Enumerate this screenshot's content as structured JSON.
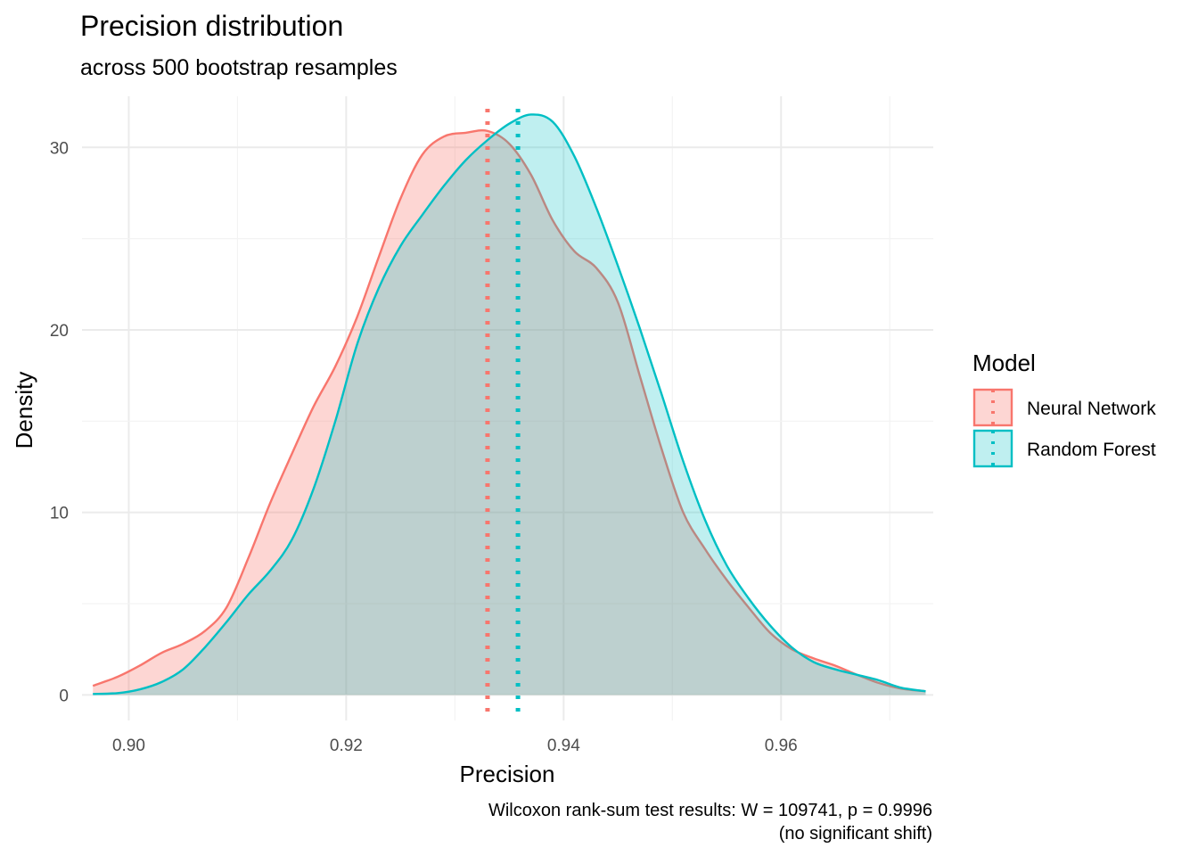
{
  "chart_data": {
    "type": "area",
    "title": "Precision distribution",
    "subtitle": "across 500 bootstrap resamples",
    "xlabel": "Precision",
    "ylabel": "Density",
    "caption_line1": "Wilcoxon rank-sum test results: W = 109741, p = 0.9996",
    "caption_line2": "(no significant shift)",
    "xlim": [
      0.8957,
      0.974
    ],
    "ylim": [
      -1.4,
      32.8
    ],
    "x_ticks": [
      0.9,
      0.92,
      0.94,
      0.96
    ],
    "x_tick_labels": [
      "0.90",
      "0.92",
      "0.94",
      "0.96"
    ],
    "y_ticks": [
      0,
      10,
      20,
      30
    ],
    "y_tick_labels": [
      "0",
      "10",
      "20",
      "30"
    ],
    "grid": true,
    "legend": {
      "title": "Model",
      "position": "right"
    },
    "series": [
      {
        "name": "Neural Network",
        "color": "#F8766D",
        "fill": "#F8766D",
        "fill_opacity": 0.3,
        "mean": 0.933,
        "points": [
          [
            0.8967,
            0.5
          ],
          [
            0.899,
            1.0
          ],
          [
            0.901,
            1.6
          ],
          [
            0.903,
            2.3
          ],
          [
            0.905,
            2.8
          ],
          [
            0.907,
            3.5
          ],
          [
            0.909,
            4.8
          ],
          [
            0.911,
            7.5
          ],
          [
            0.913,
            10.5
          ],
          [
            0.915,
            13.2
          ],
          [
            0.917,
            15.8
          ],
          [
            0.919,
            18.0
          ],
          [
            0.921,
            20.7
          ],
          [
            0.923,
            24.0
          ],
          [
            0.925,
            27.2
          ],
          [
            0.927,
            29.6
          ],
          [
            0.929,
            30.6
          ],
          [
            0.931,
            30.8
          ],
          [
            0.933,
            30.9
          ],
          [
            0.935,
            30.2
          ],
          [
            0.937,
            28.5
          ],
          [
            0.939,
            26.0
          ],
          [
            0.941,
            24.3
          ],
          [
            0.943,
            23.4
          ],
          [
            0.945,
            21.5
          ],
          [
            0.947,
            17.5
          ],
          [
            0.949,
            13.5
          ],
          [
            0.951,
            10.0
          ],
          [
            0.953,
            8.0
          ],
          [
            0.955,
            6.3
          ],
          [
            0.957,
            4.8
          ],
          [
            0.959,
            3.4
          ],
          [
            0.961,
            2.5
          ],
          [
            0.963,
            2.0
          ],
          [
            0.965,
            1.6
          ],
          [
            0.967,
            1.1
          ],
          [
            0.969,
            0.65
          ],
          [
            0.971,
            0.35
          ],
          [
            0.9733,
            0.2
          ]
        ]
      },
      {
        "name": "Random Forest",
        "color": "#00BFC4",
        "fill": "#00BFC4",
        "fill_opacity": 0.25,
        "mean": 0.9358,
        "points": [
          [
            0.8967,
            0.05
          ],
          [
            0.899,
            0.1
          ],
          [
            0.901,
            0.3
          ],
          [
            0.903,
            0.7
          ],
          [
            0.905,
            1.4
          ],
          [
            0.907,
            2.6
          ],
          [
            0.909,
            4.0
          ],
          [
            0.911,
            5.5
          ],
          [
            0.913,
            6.8
          ],
          [
            0.915,
            8.5
          ],
          [
            0.917,
            11.3
          ],
          [
            0.919,
            15.0
          ],
          [
            0.921,
            19.2
          ],
          [
            0.923,
            22.3
          ],
          [
            0.925,
            24.6
          ],
          [
            0.927,
            26.3
          ],
          [
            0.929,
            27.9
          ],
          [
            0.931,
            29.3
          ],
          [
            0.933,
            30.4
          ],
          [
            0.935,
            31.3
          ],
          [
            0.937,
            31.8
          ],
          [
            0.939,
            31.4
          ],
          [
            0.941,
            29.5
          ],
          [
            0.943,
            26.7
          ],
          [
            0.945,
            23.5
          ],
          [
            0.947,
            20.1
          ],
          [
            0.949,
            16.5
          ],
          [
            0.951,
            12.8
          ],
          [
            0.953,
            9.6
          ],
          [
            0.955,
            7.1
          ],
          [
            0.957,
            5.3
          ],
          [
            0.959,
            3.8
          ],
          [
            0.961,
            2.6
          ],
          [
            0.963,
            1.8
          ],
          [
            0.965,
            1.4
          ],
          [
            0.967,
            1.1
          ],
          [
            0.969,
            0.8
          ],
          [
            0.971,
            0.4
          ],
          [
            0.9733,
            0.2
          ]
        ]
      }
    ]
  }
}
